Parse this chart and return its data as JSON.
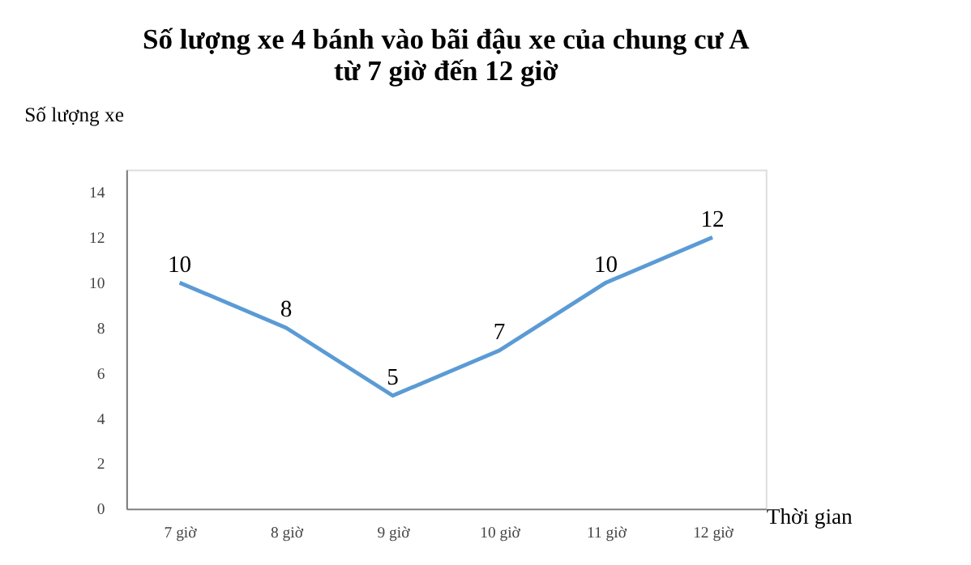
{
  "chart_data": {
    "type": "line",
    "title": "Số lượng xe 4 bánh vào bãi đậu xe của chung cư A\ntừ 7 giờ đến 12 giờ",
    "xlabel": "Thời gian",
    "ylabel": "Số lượng xe",
    "categories": [
      "7 giờ",
      "8 giờ",
      "9 giờ",
      "10 giờ",
      "11 giờ",
      "12 giờ"
    ],
    "series": [
      {
        "color": "#5b9bd5",
        "values": [
          10,
          8,
          5,
          7,
          10,
          12
        ]
      }
    ],
    "ylim": [
      0,
      15
    ],
    "yticks": [
      0,
      2,
      4,
      6,
      8,
      10,
      12,
      14
    ],
    "data_labels": true,
    "grid": false,
    "legend": false,
    "marker": "none",
    "line_style": "solid"
  }
}
